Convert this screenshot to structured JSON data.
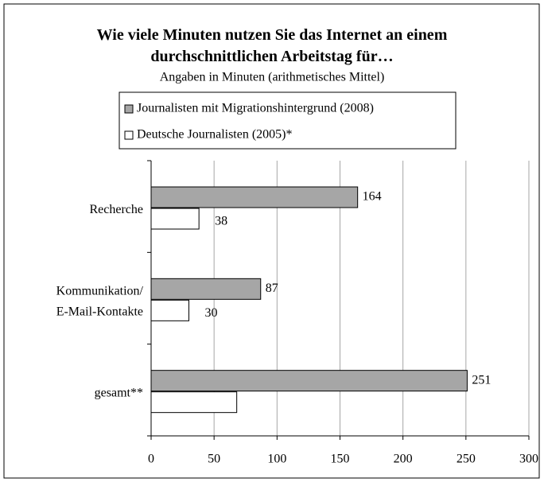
{
  "chart_data": {
    "type": "barh",
    "title": "Wie viele Minuten nutzen Sie das Internet an einem\ndurchschnittlichen Arbeitstag für…",
    "subtitle": "Angaben in Minuten (arithmetisches Mittel)",
    "categories": [
      "Recherche",
      "Kommunikation/\nE-Mail-Kontakte",
      "gesamt**"
    ],
    "series": [
      {
        "name": "Journalisten mit Migrationshintergrund (2008)",
        "color": "#a6a6a6",
        "values": [
          164,
          87,
          251
        ]
      },
      {
        "name": "Deutsche Journalisten (2005)*",
        "color": "#ffffff",
        "values": [
          38,
          30,
          68
        ],
        "value_labels": [
          "38",
          "30",
          null
        ]
      }
    ],
    "xlim": [
      0,
      300
    ],
    "xticks": [
      0,
      50,
      100,
      150,
      200,
      250,
      300
    ],
    "grid": true,
    "legend": "top"
  }
}
